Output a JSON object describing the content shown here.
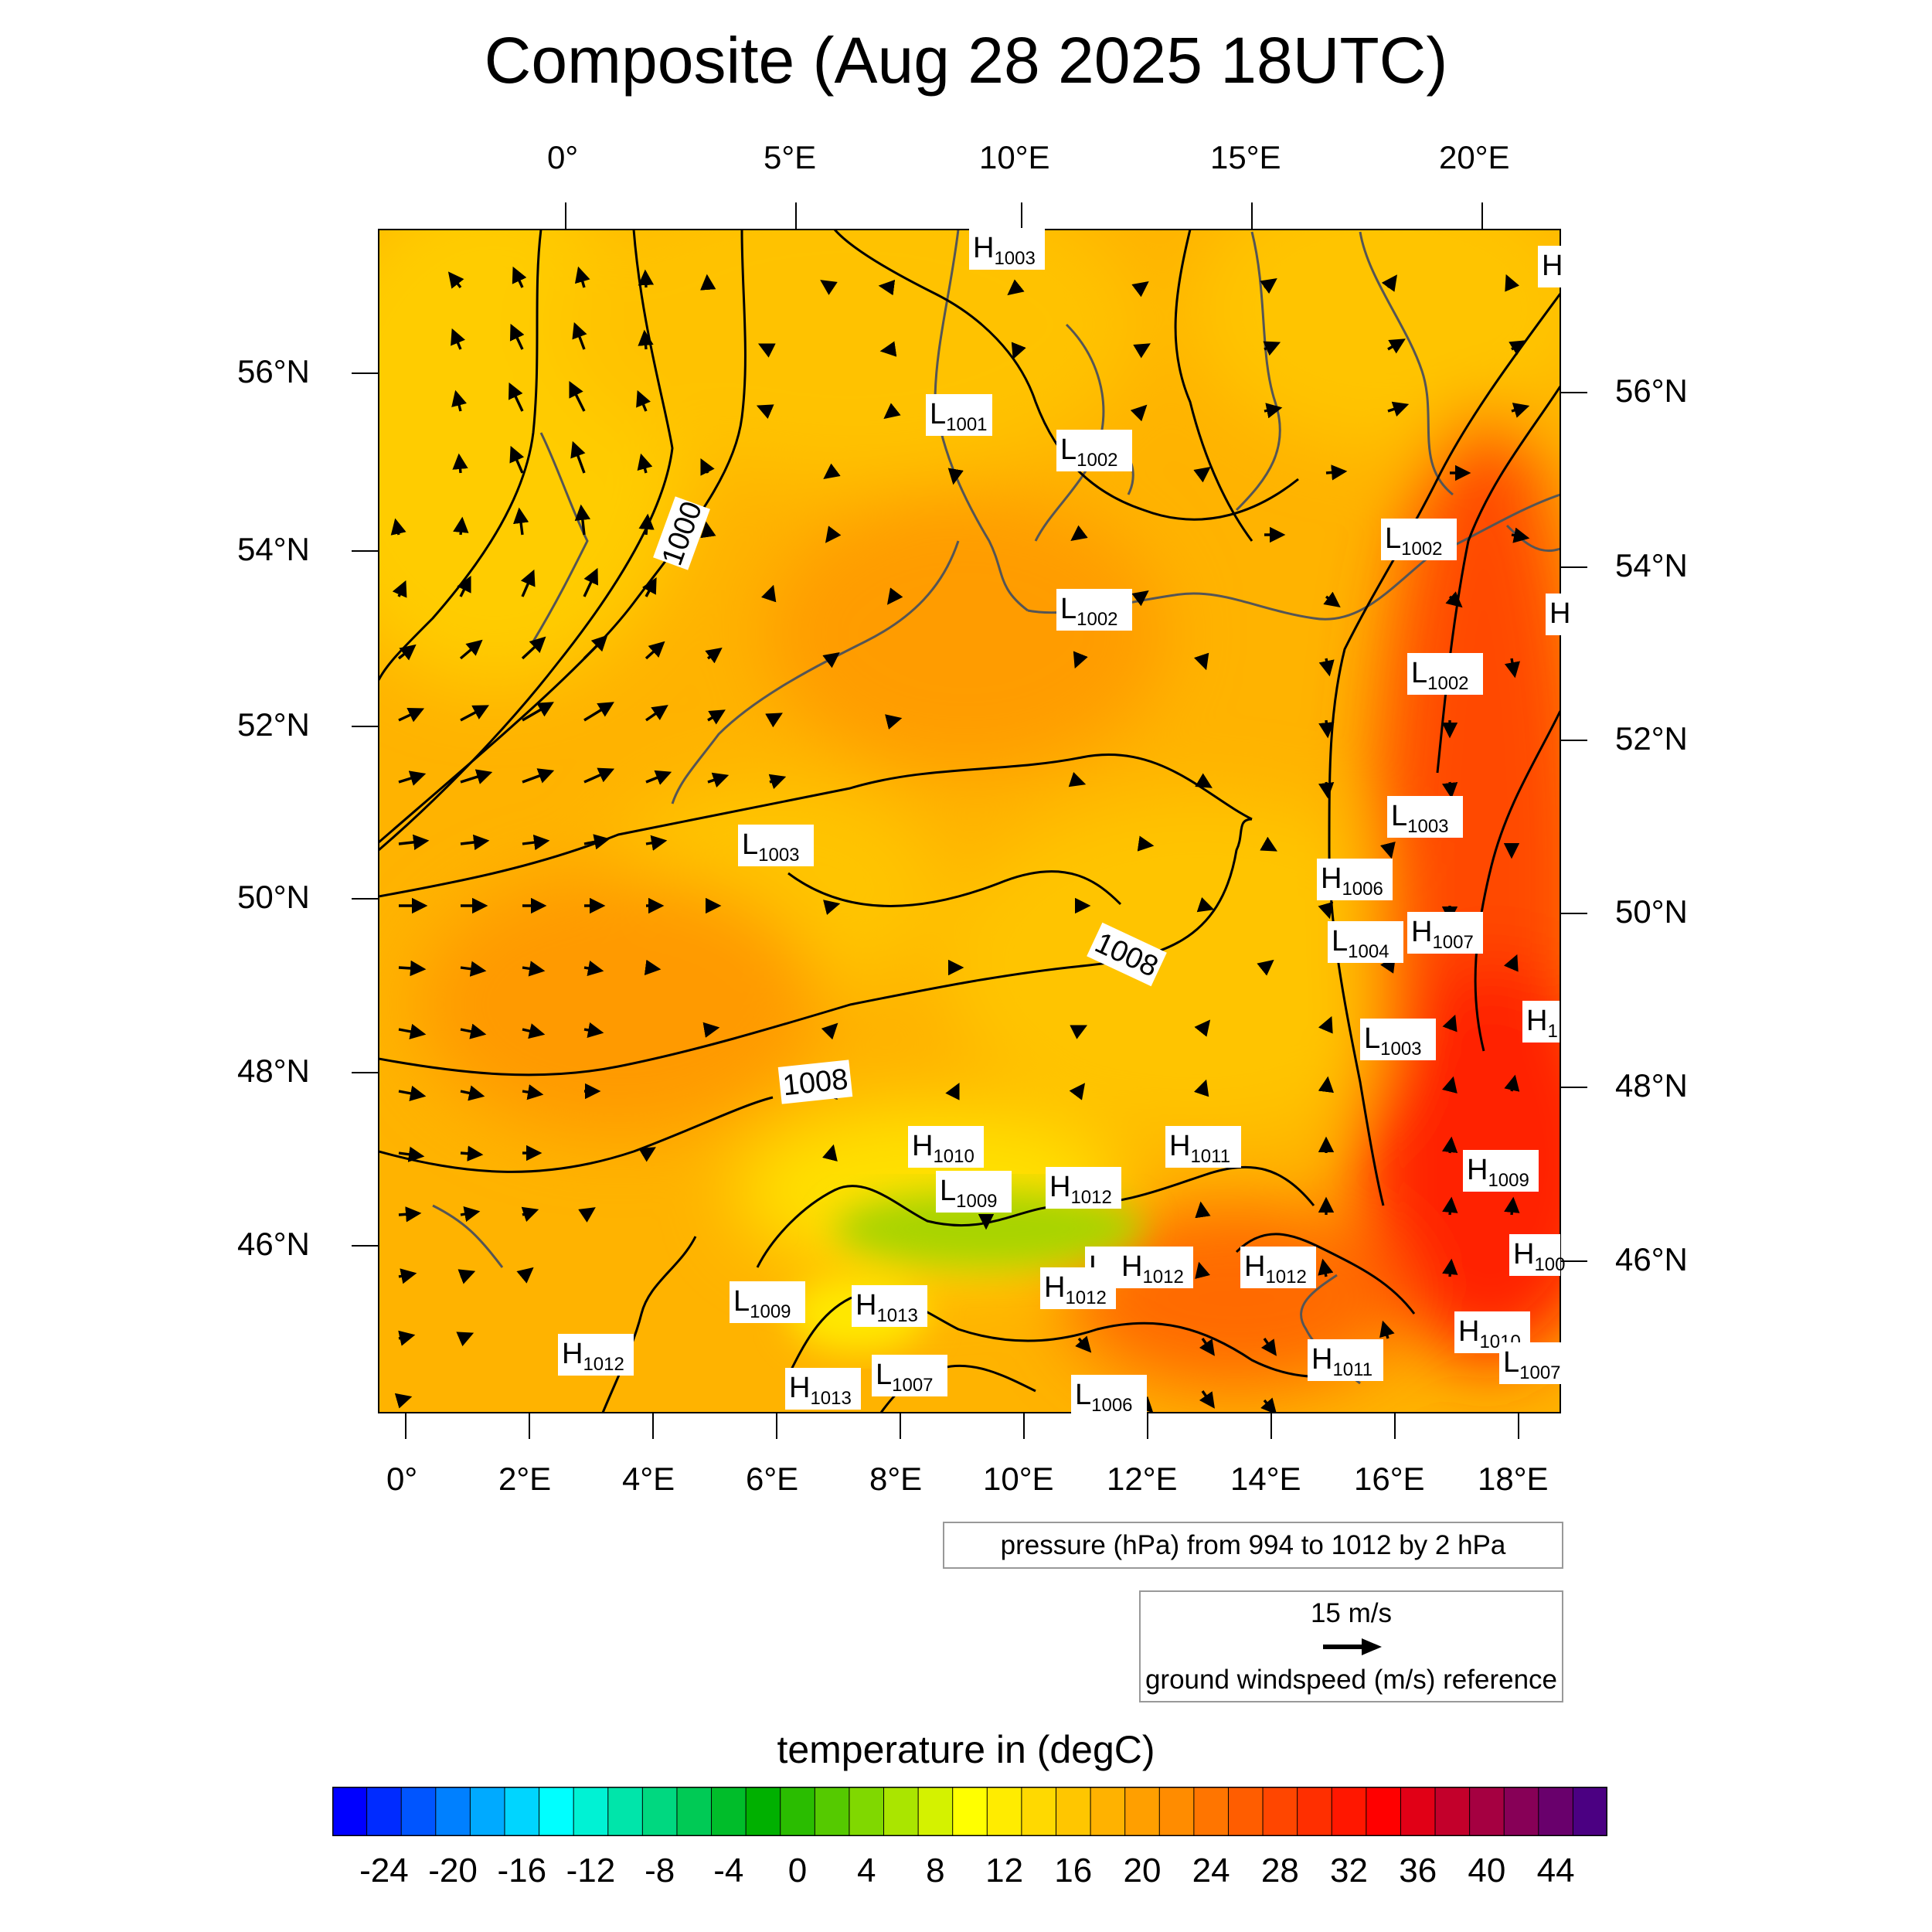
{
  "title": "Composite (Aug 28 2025 18UTC)",
  "map": {
    "top_lon_labels": [
      "0°",
      "5°E",
      "10°E",
      "15°E",
      "20°E"
    ],
    "bottom_lon_labels": [
      "0°",
      "2°E",
      "4°E",
      "6°E",
      "8°E",
      "10°E",
      "12°E",
      "14°E",
      "16°E",
      "18°E"
    ],
    "left_lat_labels": [
      "56°N",
      "54°N",
      "52°N",
      "50°N",
      "48°N",
      "46°N"
    ],
    "right_lat_labels": [
      "56°N",
      "54°N",
      "52°N",
      "50°N",
      "48°N",
      "46°N"
    ],
    "contour_labels": [
      "1000",
      "1008",
      "1008"
    ],
    "pressure_centers": [
      {
        "type": "H",
        "value": "1003"
      },
      {
        "type": "H",
        "value": ""
      },
      {
        "type": "L",
        "value": "1001"
      },
      {
        "type": "L",
        "value": "1002"
      },
      {
        "type": "L",
        "value": "1002"
      },
      {
        "type": "L",
        "value": "1002"
      },
      {
        "type": "H",
        "value": ""
      },
      {
        "type": "L",
        "value": "1002"
      },
      {
        "type": "L",
        "value": "1003"
      },
      {
        "type": "L",
        "value": "1003"
      },
      {
        "type": "H",
        "value": "1006"
      },
      {
        "type": "L",
        "value": "1004"
      },
      {
        "type": "H",
        "value": "1007"
      },
      {
        "type": "L",
        "value": "1003"
      },
      {
        "type": "H",
        "value": "1"
      },
      {
        "type": "H",
        "value": "1010"
      },
      {
        "type": "H",
        "value": "1011"
      },
      {
        "type": "L",
        "value": "1009"
      },
      {
        "type": "H",
        "value": "1012"
      },
      {
        "type": "H",
        "value": "1009"
      },
      {
        "type": "L",
        "value": "1"
      },
      {
        "type": "H",
        "value": "1012"
      },
      {
        "type": "H",
        "value": "1012"
      },
      {
        "type": "H",
        "value": "1012"
      },
      {
        "type": "H",
        "value": "100"
      },
      {
        "type": "L",
        "value": "1009"
      },
      {
        "type": "H",
        "value": "1013"
      },
      {
        "type": "H",
        "value": "1010"
      },
      {
        "type": "H",
        "value": "1012"
      },
      {
        "type": "H",
        "value": "1011"
      },
      {
        "type": "L",
        "value": "1007"
      },
      {
        "type": "H",
        "value": "1013"
      },
      {
        "type": "L",
        "value": "1007"
      },
      {
        "type": "L",
        "value": "1006"
      }
    ]
  },
  "pressure_note": "pressure (hPa) from 994 to 1012 by 2 hPa",
  "wind_reference": {
    "value": "15 m/s",
    "label": "ground windspeed (m/s) reference"
  },
  "colorbar": {
    "title": "temperature in (degC)",
    "min": -26,
    "max": 46,
    "step": 2,
    "tick_labels": [
      "-24",
      "-20",
      "-16",
      "-12",
      "-8",
      "-4",
      "0",
      "4",
      "8",
      "12",
      "16",
      "20",
      "24",
      "28",
      "32",
      "36",
      "40",
      "44"
    ],
    "colors": [
      "#0000ff",
      "#00ffff",
      "#00b000",
      "#ffff00",
      "#ff8c00",
      "#ff0000",
      "#4b0082"
    ]
  },
  "field_colors": {
    "warm": "#ffa500",
    "mild": "#ffd700",
    "hot": "#ff3000",
    "cool": "#c8e000",
    "coast": "#555555"
  }
}
